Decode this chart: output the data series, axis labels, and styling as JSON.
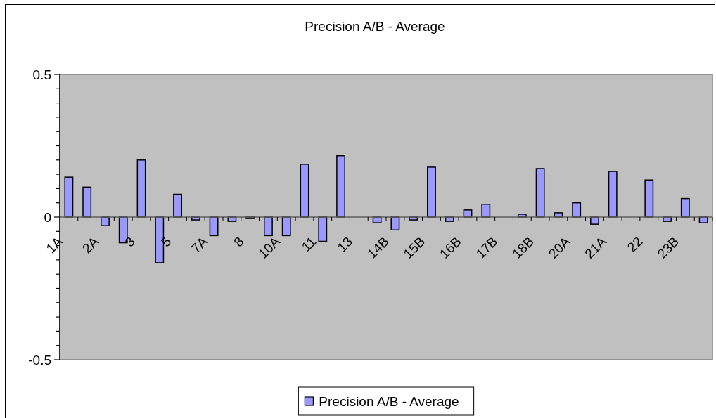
{
  "chart_data": {
    "type": "bar",
    "title": "Precision A/B - Average",
    "categories": [
      "1A",
      null,
      "2A",
      null,
      "3",
      null,
      "5",
      null,
      "7A",
      null,
      "8",
      null,
      "10A",
      null,
      "11",
      null,
      "13",
      null,
      "14B",
      null,
      "15B",
      null,
      "16B",
      null,
      "17B",
      null,
      "18B",
      null,
      "20A",
      null,
      "21A",
      null,
      "22",
      null,
      "23B",
      null
    ],
    "series": [
      {
        "name": "Precision A/B - Average",
        "color": "#9999ff",
        "values": [
          0.14,
          0.105,
          -0.03,
          -0.09,
          0.2,
          -0.16,
          0.08,
          -0.01,
          -0.065,
          -0.015,
          -0.005,
          -0.065,
          -0.065,
          0.185,
          -0.085,
          0.215,
          null,
          -0.02,
          -0.045,
          -0.01,
          0.175,
          -0.015,
          0.025,
          0.045,
          null,
          0.01,
          0.17,
          0.015,
          0.05,
          -0.025,
          0.16,
          null,
          0.13,
          -0.015,
          0.065,
          -0.02
        ]
      }
    ],
    "ylim": [
      -0.5,
      0.5
    ],
    "yticks": [
      -0.5,
      {
        "value": -0.45,
        "label": null
      },
      {
        "value": -0.4,
        "label": null
      },
      {
        "value": -0.35,
        "label": null
      },
      {
        "value": -0.3,
        "label": null
      },
      {
        "value": -0.25,
        "label": null
      },
      {
        "value": -0.2,
        "label": null
      },
      {
        "value": -0.15,
        "label": null
      },
      {
        "value": -0.1,
        "label": null
      },
      {
        "value": -0.05,
        "label": null
      },
      0,
      {
        "value": 0.05,
        "label": null
      },
      {
        "value": 0.1,
        "label": null
      },
      {
        "value": 0.15,
        "label": null
      },
      {
        "value": 0.2,
        "label": null
      },
      {
        "value": 0.25,
        "label": null
      },
      {
        "value": 0.3,
        "label": null
      },
      {
        "value": 0.35,
        "label": null
      },
      {
        "value": 0.4,
        "label": null
      },
      {
        "value": 0.45,
        "label": null
      },
      0.5
    ],
    "legend": "bottom"
  }
}
